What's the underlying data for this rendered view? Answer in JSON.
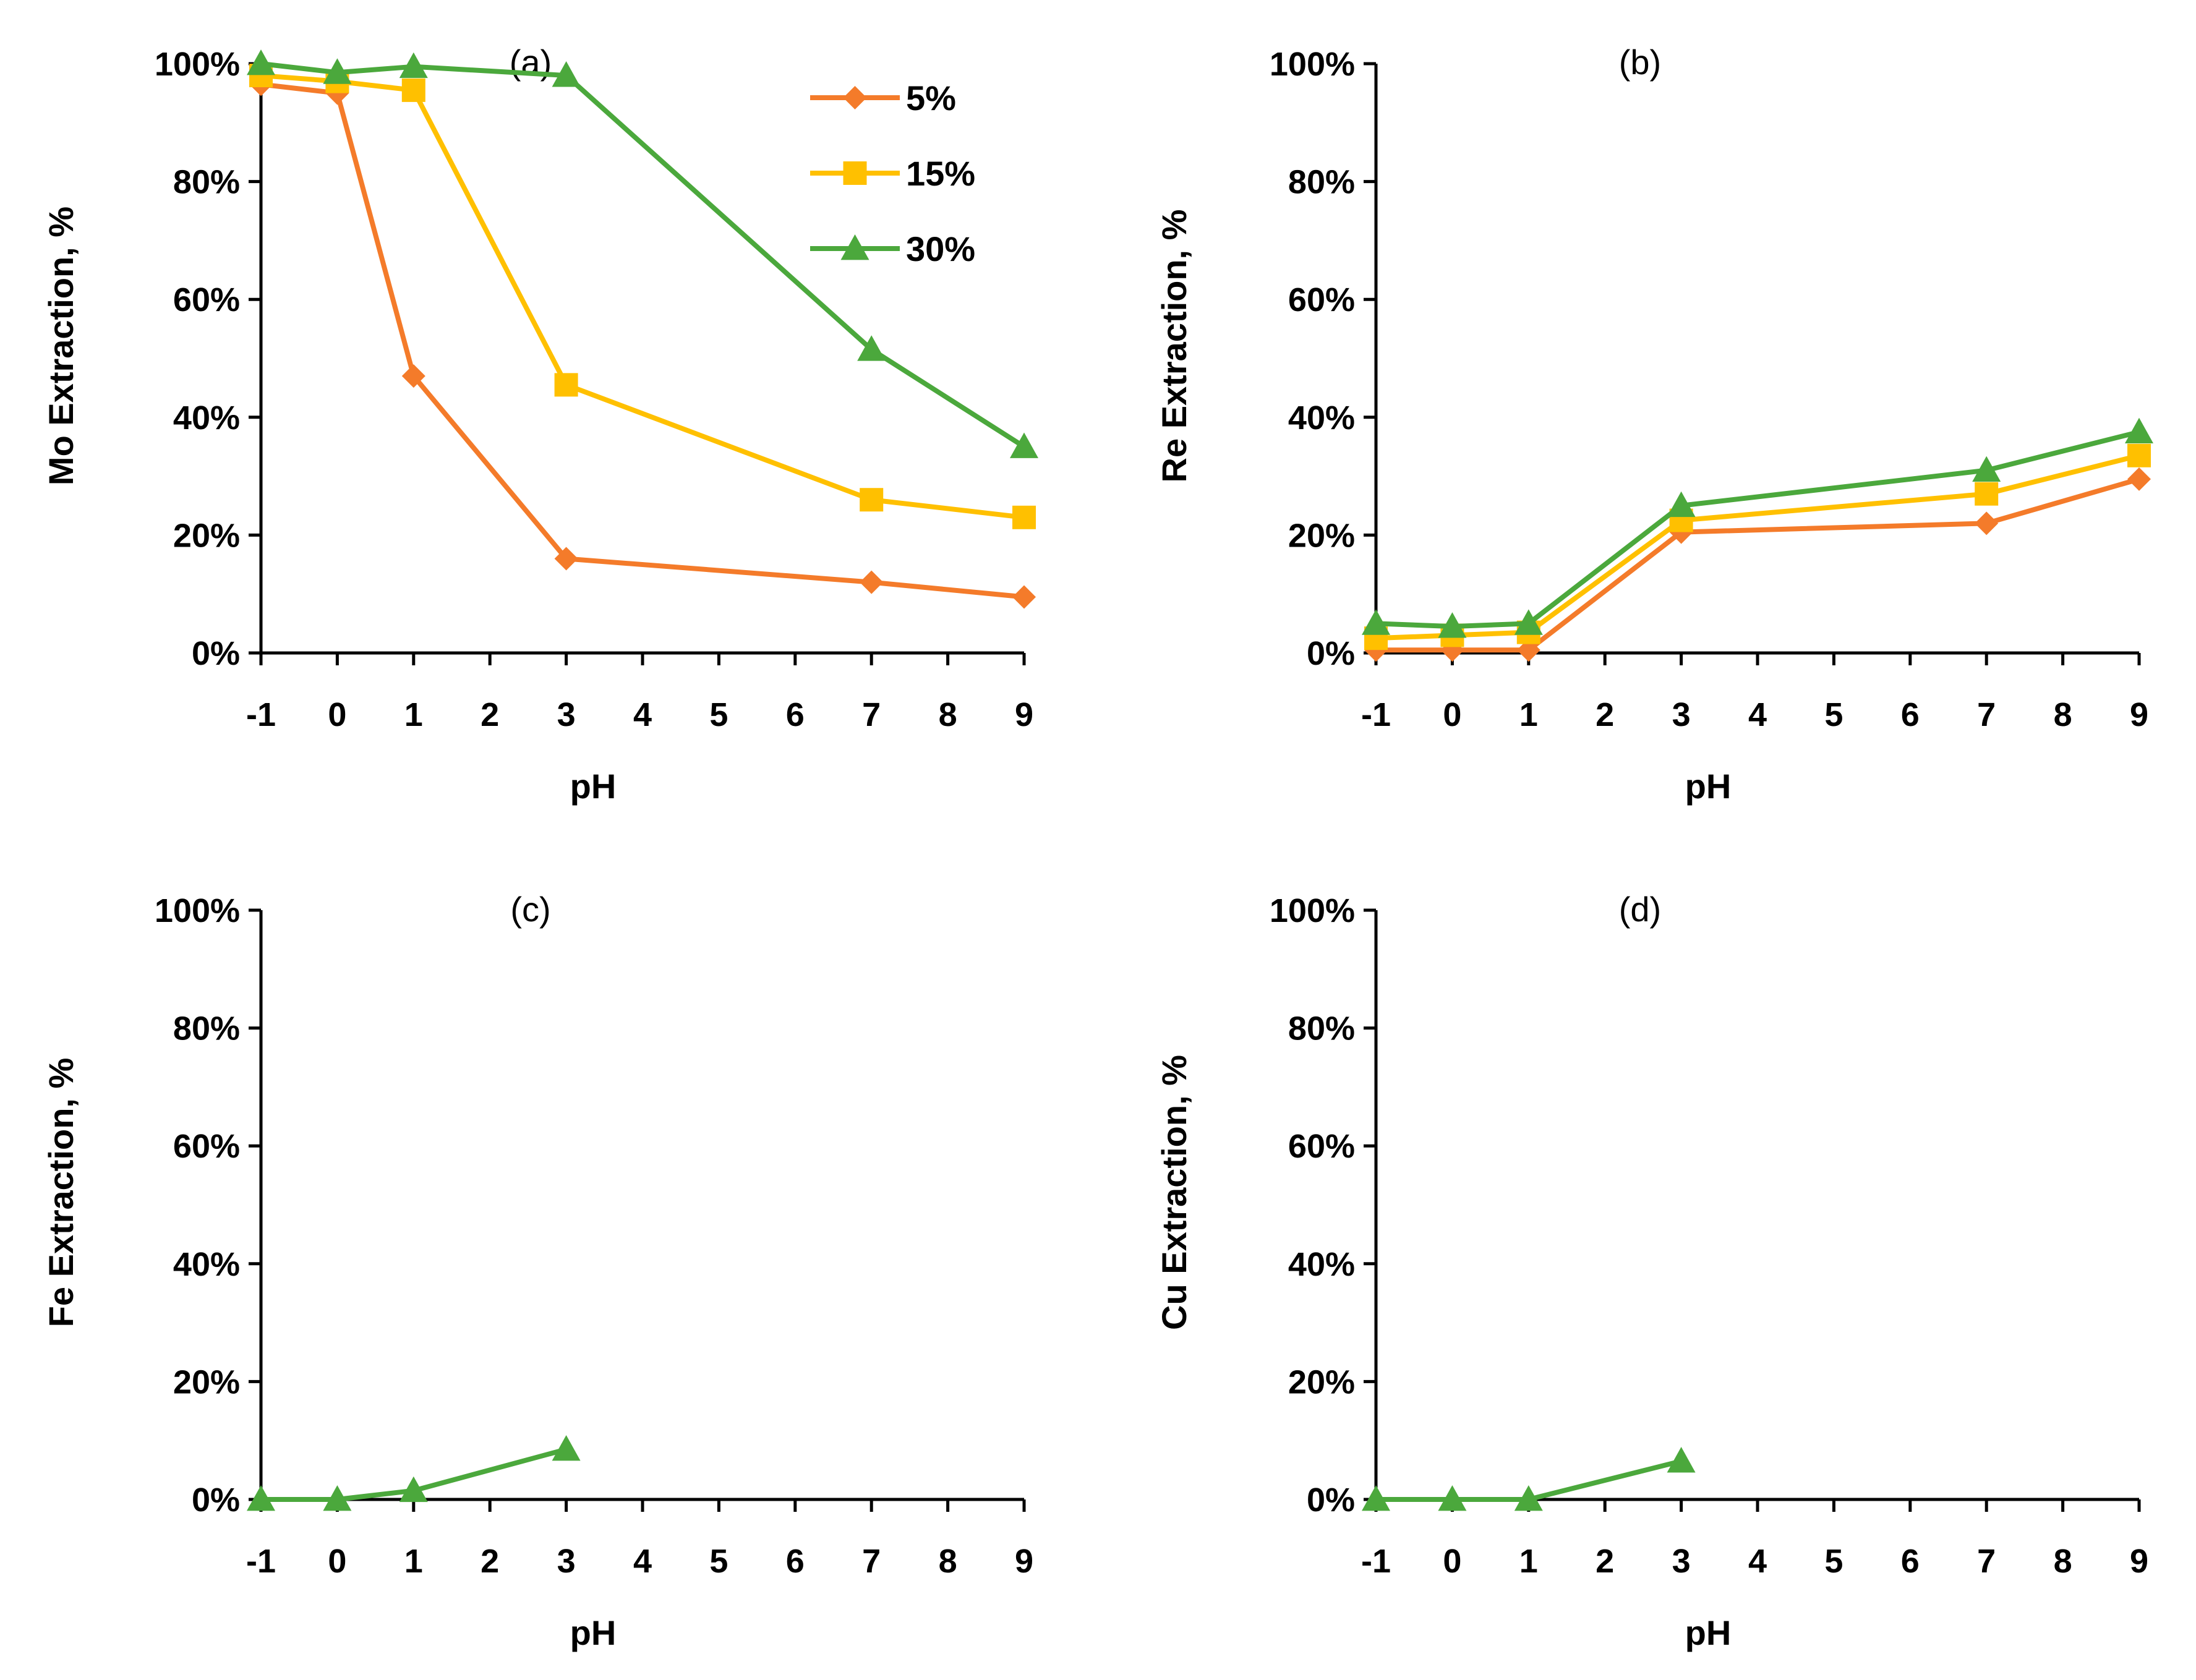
{
  "colors": {
    "5%": "#F47B2A",
    "15%": "#FFC000",
    "30%": "#4BA83C",
    "axis": "#000000"
  },
  "chart_data": [
    {
      "type": "line",
      "panel_label": "(a)",
      "xlabel": "pH",
      "ylabel": "Mo Extraction, %",
      "xlim": [
        -1,
        9
      ],
      "ylim": [
        0,
        100
      ],
      "x_ticks": [
        "-1",
        "0",
        "1",
        "2",
        "3",
        "4",
        "5",
        "6",
        "7",
        "8",
        "9"
      ],
      "y_ticks": [
        "0%",
        "20%",
        "40%",
        "60%",
        "80%",
        "100%"
      ],
      "legend": "top-right",
      "x": [
        -1,
        0,
        1,
        3,
        7,
        9
      ],
      "series": [
        {
          "name": "5%",
          "marker": "diamond",
          "values": [
            96.5,
            95,
            47,
            16,
            12,
            9.5
          ]
        },
        {
          "name": "15%",
          "marker": "square",
          "values": [
            98,
            97,
            95.5,
            45.5,
            26,
            23
          ]
        },
        {
          "name": "30%",
          "marker": "triangle",
          "values": [
            100,
            98.5,
            99.5,
            98,
            51.5,
            35
          ]
        }
      ]
    },
    {
      "type": "line",
      "panel_label": "(b)",
      "xlabel": "pH",
      "ylabel": "Re Extraction, %",
      "xlim": [
        -1,
        9
      ],
      "ylim": [
        0,
        100
      ],
      "x_ticks": [
        "-1",
        "0",
        "1",
        "2",
        "3",
        "4",
        "5",
        "6",
        "7",
        "8",
        "9"
      ],
      "y_ticks": [
        "0%",
        "20%",
        "40%",
        "60%",
        "80%",
        "100%"
      ],
      "x": [
        -1,
        0,
        1,
        3,
        7,
        9
      ],
      "series": [
        {
          "name": "5%",
          "marker": "diamond",
          "values": [
            0.5,
            0.5,
            0.5,
            20.5,
            22,
            29.5
          ]
        },
        {
          "name": "15%",
          "marker": "square",
          "values": [
            2.5,
            3,
            3.5,
            22.5,
            27,
            33.5
          ]
        },
        {
          "name": "30%",
          "marker": "triangle",
          "values": [
            5,
            4.5,
            5,
            25,
            31,
            37.5
          ]
        }
      ]
    },
    {
      "type": "line",
      "panel_label": "(c)",
      "xlabel": "pH",
      "ylabel": "Fe Extraction, %",
      "xlim": [
        -1,
        9
      ],
      "ylim": [
        0,
        100
      ],
      "x_ticks": [
        "-1",
        "0",
        "1",
        "2",
        "3",
        "4",
        "5",
        "6",
        "7",
        "8",
        "9"
      ],
      "y_ticks": [
        "0%",
        "20%",
        "40%",
        "60%",
        "80%",
        "100%"
      ],
      "x": [
        -1,
        0,
        1,
        3
      ],
      "series": [
        {
          "name": "30%",
          "marker": "triangle",
          "values": [
            0,
            0,
            1.5,
            8.5
          ]
        }
      ]
    },
    {
      "type": "line",
      "panel_label": "(d)",
      "xlabel": "pH",
      "ylabel": "Cu Extraction, %",
      "xlim": [
        -1,
        9
      ],
      "ylim": [
        0,
        100
      ],
      "x_ticks": [
        "-1",
        "0",
        "1",
        "2",
        "3",
        "4",
        "5",
        "6",
        "7",
        "8",
        "9"
      ],
      "y_ticks": [
        "0%",
        "20%",
        "40%",
        "60%",
        "80%",
        "100%"
      ],
      "x": [
        -1,
        0,
        1,
        3
      ],
      "series": [
        {
          "name": "30%",
          "marker": "triangle",
          "values": [
            0,
            0,
            0,
            6.5
          ]
        }
      ]
    }
  ]
}
